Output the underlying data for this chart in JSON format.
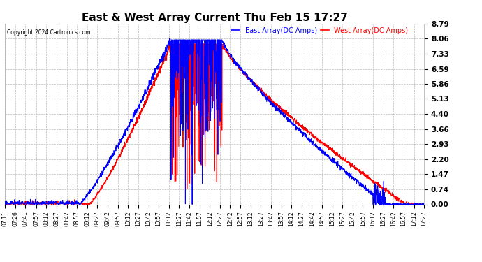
{
  "title": "East & West Array Current Thu Feb 15 17:27",
  "copyright": "Copyright 2024 Cartronics.com",
  "legend_east": "East Array(DC Amps)",
  "legend_west": "West Array(DC Amps)",
  "east_color": "#0000ff",
  "west_color": "#ff0000",
  "background_color": "#ffffff",
  "grid_color": "#bbbbbb",
  "yticks": [
    0.0,
    0.74,
    1.47,
    2.2,
    2.93,
    3.66,
    4.4,
    5.13,
    5.86,
    6.59,
    7.33,
    8.06,
    8.79
  ],
  "ymin": 0.0,
  "ymax": 8.79,
  "figsize": [
    6.9,
    3.75
  ],
  "dpi": 100,
  "xtick_labels": [
    "07:11",
    "07:26",
    "07:41",
    "07:57",
    "08:12",
    "08:27",
    "08:42",
    "08:57",
    "09:12",
    "09:27",
    "09:42",
    "09:57",
    "10:12",
    "10:27",
    "10:42",
    "10:57",
    "11:12",
    "11:27",
    "11:42",
    "11:57",
    "12:12",
    "12:27",
    "12:42",
    "12:57",
    "13:12",
    "13:27",
    "13:42",
    "13:57",
    "14:12",
    "14:27",
    "14:42",
    "14:57",
    "15:12",
    "15:27",
    "15:42",
    "15:57",
    "16:12",
    "16:27",
    "16:42",
    "16:57",
    "17:12",
    "17:27"
  ]
}
